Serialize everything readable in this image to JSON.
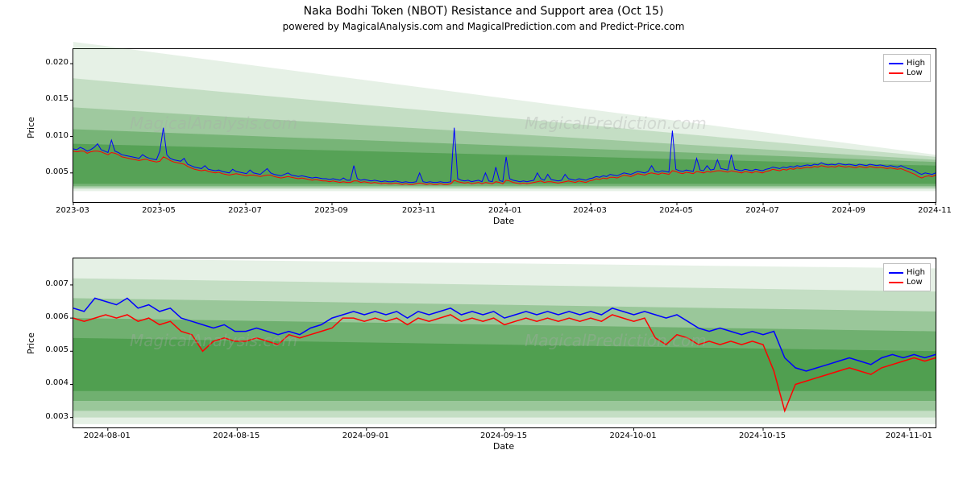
{
  "title": "Naka Bodhi Token (NBOT) Resistance and Support area (Oct 15)",
  "title_fontsize": 14,
  "subtitle": "powered by MagicalAnalysis.com and MagicalPrediction.com and Predict-Price.com",
  "subtitle_fontsize": 12,
  "background_color": "#ffffff",
  "watermarks": [
    "MagicalAnalysis.com",
    "MagicalPrediction.com"
  ],
  "watermark_color": "#aaaaaa",
  "watermark_opacity": 0.35,
  "legend": {
    "items": [
      {
        "label": "High",
        "color": "#0000ff"
      },
      {
        "label": "Low",
        "color": "#ff0000"
      }
    ]
  },
  "chart1": {
    "type": "line",
    "ylabel": "Price",
    "xlabel": "Date",
    "label_fontsize": 11,
    "ylim": [
      0.001,
      0.022
    ],
    "yticks": [
      0.005,
      0.01,
      0.015,
      0.02
    ],
    "ytick_labels": [
      "0.005",
      "0.010",
      "0.015",
      "0.020"
    ],
    "x_start": 0,
    "x_end": 610,
    "xticks": [
      0,
      61,
      122,
      183,
      245,
      306,
      366,
      427,
      488,
      549,
      610
    ],
    "xtick_labels": [
      "2023-03",
      "2023-05",
      "2023-07",
      "2023-09",
      "2023-11",
      "2024-01",
      "2024-03",
      "2024-05",
      "2024-07",
      "2024-09",
      "2024-11"
    ],
    "bands": [
      {
        "y0_start": 0.0025,
        "y1_start": 0.023,
        "y0_end": 0.0025,
        "y1_end": 0.0075,
        "color": "#2e8b2e",
        "opacity": 0.12
      },
      {
        "y0_start": 0.0028,
        "y1_start": 0.018,
        "y0_end": 0.0028,
        "y1_end": 0.0072,
        "color": "#2e8b2e",
        "opacity": 0.18
      },
      {
        "y0_start": 0.003,
        "y1_start": 0.014,
        "y0_end": 0.003,
        "y1_end": 0.0068,
        "color": "#2e8b2e",
        "opacity": 0.25
      },
      {
        "y0_start": 0.0032,
        "y1_start": 0.011,
        "y0_end": 0.0032,
        "y1_end": 0.0065,
        "color": "#2e8b2e",
        "opacity": 0.35
      },
      {
        "y0_start": 0.0035,
        "y1_start": 0.009,
        "y0_end": 0.0035,
        "y1_end": 0.006,
        "color": "#2e8b2e",
        "opacity": 0.45
      }
    ],
    "line_width": 1.0,
    "high_color": "#0000ff",
    "low_color": "#ff0000",
    "high": [
      0.0083,
      0.0082,
      0.0085,
      0.0083,
      0.008,
      0.0082,
      0.0085,
      0.009,
      0.0082,
      0.008,
      0.0078,
      0.0095,
      0.008,
      0.0078,
      0.0075,
      0.0074,
      0.0073,
      0.0072,
      0.0071,
      0.007,
      0.0075,
      0.0072,
      0.007,
      0.0069,
      0.0068,
      0.008,
      0.0112,
      0.0075,
      0.007,
      0.0068,
      0.0067,
      0.0066,
      0.007,
      0.0062,
      0.006,
      0.0058,
      0.0057,
      0.0056,
      0.006,
      0.0055,
      0.0054,
      0.0053,
      0.0054,
      0.0052,
      0.0051,
      0.005,
      0.0055,
      0.0052,
      0.0051,
      0.005,
      0.0049,
      0.0054,
      0.005,
      0.0049,
      0.0048,
      0.0052,
      0.0056,
      0.005,
      0.0048,
      0.0047,
      0.0046,
      0.0048,
      0.005,
      0.0047,
      0.0046,
      0.0045,
      0.0046,
      0.0045,
      0.0044,
      0.0043,
      0.0044,
      0.0043,
      0.0042,
      0.0042,
      0.0041,
      0.0042,
      0.0041,
      0.004,
      0.0043,
      0.004,
      0.004,
      0.006,
      0.0042,
      0.004,
      0.0041,
      0.004,
      0.0039,
      0.004,
      0.0039,
      0.0038,
      0.0039,
      0.0038,
      0.0038,
      0.0039,
      0.0038,
      0.0037,
      0.0038,
      0.0037,
      0.0037,
      0.0038,
      0.005,
      0.0038,
      0.0037,
      0.0038,
      0.0037,
      0.0037,
      0.0038,
      0.0037,
      0.0037,
      0.0038,
      0.0112,
      0.0042,
      0.004,
      0.0039,
      0.004,
      0.0038,
      0.0039,
      0.004,
      0.0038,
      0.005,
      0.0039,
      0.0038,
      0.0058,
      0.004,
      0.0038,
      0.0072,
      0.0042,
      0.004,
      0.0039,
      0.0038,
      0.0039,
      0.0038,
      0.0039,
      0.004,
      0.005,
      0.0042,
      0.004,
      0.0048,
      0.0041,
      0.004,
      0.0039,
      0.004,
      0.0048,
      0.0042,
      0.0041,
      0.004,
      0.0042,
      0.0041,
      0.004,
      0.0042,
      0.0043,
      0.0045,
      0.0044,
      0.0046,
      0.0045,
      0.0048,
      0.0047,
      0.0046,
      0.0048,
      0.005,
      0.0049,
      0.0048,
      0.005,
      0.0052,
      0.0051,
      0.005,
      0.0052,
      0.006,
      0.0052,
      0.0051,
      0.0053,
      0.0052,
      0.0051,
      0.0108,
      0.0055,
      0.0053,
      0.0052,
      0.0054,
      0.0053,
      0.0052,
      0.007,
      0.0054,
      0.0053,
      0.006,
      0.0054,
      0.0055,
      0.0068,
      0.0056,
      0.0055,
      0.0054,
      0.0075,
      0.0055,
      0.0054,
      0.0053,
      0.0055,
      0.0054,
      0.0053,
      0.0055,
      0.0054,
      0.0053,
      0.0055,
      0.0056,
      0.0058,
      0.0057,
      0.0056,
      0.0058,
      0.0057,
      0.0059,
      0.0058,
      0.006,
      0.0059,
      0.006,
      0.0061,
      0.006,
      0.0062,
      0.0061,
      0.0064,
      0.0062,
      0.0061,
      0.0062,
      0.0061,
      0.0063,
      0.0062,
      0.0061,
      0.0062,
      0.0061,
      0.006,
      0.0062,
      0.0061,
      0.006,
      0.0062,
      0.0061,
      0.006,
      0.0061,
      0.006,
      0.0059,
      0.006,
      0.0059,
      0.0058,
      0.006,
      0.0058,
      0.0056,
      0.0055,
      0.0053,
      0.005,
      0.0048,
      0.005,
      0.0049,
      0.0048,
      0.005
    ],
    "low": [
      0.008,
      0.0079,
      0.008,
      0.008,
      0.0077,
      0.0079,
      0.008,
      0.008,
      0.0079,
      0.0077,
      0.0075,
      0.0078,
      0.0077,
      0.0075,
      0.0072,
      0.0071,
      0.007,
      0.0069,
      0.0068,
      0.0067,
      0.0068,
      0.0069,
      0.0067,
      0.0066,
      0.0065,
      0.0066,
      0.0072,
      0.007,
      0.0067,
      0.0065,
      0.0064,
      0.0063,
      0.0062,
      0.0059,
      0.0057,
      0.0055,
      0.0054,
      0.0053,
      0.0054,
      0.0052,
      0.0051,
      0.005,
      0.0051,
      0.0049,
      0.0048,
      0.0047,
      0.0048,
      0.0049,
      0.0048,
      0.0047,
      0.0046,
      0.0047,
      0.0047,
      0.0046,
      0.0045,
      0.0046,
      0.0047,
      0.0047,
      0.0045,
      0.0044,
      0.0043,
      0.0044,
      0.0045,
      0.0044,
      0.0043,
      0.0042,
      0.0043,
      0.0042,
      0.0041,
      0.004,
      0.0041,
      0.004,
      0.0039,
      0.0039,
      0.0038,
      0.0039,
      0.0038,
      0.0037,
      0.0038,
      0.0037,
      0.0037,
      0.0039,
      0.0039,
      0.0037,
      0.0038,
      0.0037,
      0.0036,
      0.0037,
      0.0036,
      0.0035,
      0.0036,
      0.0035,
      0.0035,
      0.0036,
      0.0035,
      0.0034,
      0.0035,
      0.0034,
      0.0034,
      0.0035,
      0.0036,
      0.0035,
      0.0034,
      0.0035,
      0.0034,
      0.0034,
      0.0035,
      0.0034,
      0.0034,
      0.0035,
      0.004,
      0.0038,
      0.0037,
      0.0036,
      0.0037,
      0.0035,
      0.0036,
      0.0037,
      0.0035,
      0.0037,
      0.0036,
      0.0035,
      0.0038,
      0.0037,
      0.0035,
      0.004,
      0.0039,
      0.0037,
      0.0036,
      0.0035,
      0.0036,
      0.0035,
      0.0036,
      0.0037,
      0.0038,
      0.0039,
      0.0037,
      0.0038,
      0.0038,
      0.0037,
      0.0036,
      0.0037,
      0.0038,
      0.0039,
      0.0038,
      0.0037,
      0.0039,
      0.0038,
      0.0037,
      0.0039,
      0.004,
      0.0042,
      0.0041,
      0.0043,
      0.0042,
      0.0044,
      0.0044,
      0.0043,
      0.0045,
      0.0047,
      0.0046,
      0.0045,
      0.0047,
      0.0049,
      0.0048,
      0.0047,
      0.0049,
      0.005,
      0.0049,
      0.0048,
      0.005,
      0.0049,
      0.0048,
      0.0053,
      0.0052,
      0.005,
      0.0049,
      0.0051,
      0.005,
      0.0049,
      0.0052,
      0.0051,
      0.005,
      0.0052,
      0.0051,
      0.0052,
      0.0053,
      0.0053,
      0.0052,
      0.0051,
      0.0053,
      0.0052,
      0.0051,
      0.005,
      0.0052,
      0.0051,
      0.005,
      0.0052,
      0.0051,
      0.005,
      0.0052,
      0.0053,
      0.0055,
      0.0054,
      0.0053,
      0.0055,
      0.0054,
      0.0056,
      0.0055,
      0.0057,
      0.0056,
      0.0057,
      0.0058,
      0.0057,
      0.0059,
      0.0058,
      0.006,
      0.0059,
      0.0058,
      0.0059,
      0.0058,
      0.006,
      0.0059,
      0.0058,
      0.0059,
      0.0058,
      0.0057,
      0.0059,
      0.0058,
      0.0057,
      0.0059,
      0.0058,
      0.0057,
      0.0058,
      0.0057,
      0.0056,
      0.0057,
      0.0056,
      0.0055,
      0.0056,
      0.0054,
      0.0052,
      0.005,
      0.0048,
      0.0045,
      0.0043,
      0.0045,
      0.0046,
      0.0045,
      0.0047
    ]
  },
  "chart2": {
    "type": "line",
    "ylabel": "Price",
    "xlabel": "Date",
    "label_fontsize": 11,
    "ylim": [
      0.0027,
      0.0078
    ],
    "yticks": [
      0.003,
      0.004,
      0.005,
      0.006,
      0.007
    ],
    "ytick_labels": [
      "0.003",
      "0.004",
      "0.005",
      "0.006",
      "0.007"
    ],
    "x_start": 0,
    "x_end": 100,
    "xticks": [
      4,
      19,
      34,
      50,
      65,
      80,
      97
    ],
    "xtick_labels": [
      "2024-08-01",
      "2024-08-15",
      "2024-09-01",
      "2024-09-15",
      "2024-10-01",
      "2024-10-15",
      "2024-11-01"
    ],
    "bands": [
      {
        "y0_start": 0.0028,
        "y1_start": 0.0078,
        "y0_end": 0.0028,
        "y1_end": 0.0075,
        "color": "#2e8b2e",
        "opacity": 0.12
      },
      {
        "y0_start": 0.003,
        "y1_start": 0.0072,
        "y0_end": 0.003,
        "y1_end": 0.0068,
        "color": "#2e8b2e",
        "opacity": 0.18
      },
      {
        "y0_start": 0.0032,
        "y1_start": 0.0066,
        "y0_end": 0.0032,
        "y1_end": 0.0062,
        "color": "#2e8b2e",
        "opacity": 0.28
      },
      {
        "y0_start": 0.0035,
        "y1_start": 0.006,
        "y0_end": 0.0035,
        "y1_end": 0.0056,
        "color": "#2e8b2e",
        "opacity": 0.38
      },
      {
        "y0_start": 0.0038,
        "y1_start": 0.0054,
        "y0_end": 0.0038,
        "y1_end": 0.005,
        "color": "#2e8b2e",
        "opacity": 0.48
      }
    ],
    "line_width": 1.5,
    "high_color": "#0000ff",
    "low_color": "#ff0000",
    "high": [
      0.0063,
      0.0062,
      0.0066,
      0.0065,
      0.0064,
      0.0066,
      0.0063,
      0.0064,
      0.0062,
      0.0063,
      0.006,
      0.0059,
      0.0058,
      0.0057,
      0.0058,
      0.0056,
      0.0056,
      0.0057,
      0.0056,
      0.0055,
      0.0056,
      0.0055,
      0.0057,
      0.0058,
      0.006,
      0.0061,
      0.0062,
      0.0061,
      0.0062,
      0.0061,
      0.0062,
      0.006,
      0.0062,
      0.0061,
      0.0062,
      0.0063,
      0.0061,
      0.0062,
      0.0061,
      0.0062,
      0.006,
      0.0061,
      0.0062,
      0.0061,
      0.0062,
      0.0061,
      0.0062,
      0.0061,
      0.0062,
      0.0061,
      0.0063,
      0.0062,
      0.0061,
      0.0062,
      0.0061,
      0.006,
      0.0061,
      0.0059,
      0.0057,
      0.0056,
      0.0057,
      0.0056,
      0.0055,
      0.0056,
      0.0055,
      0.0056,
      0.0048,
      0.0045,
      0.0044,
      0.0045,
      0.0046,
      0.0047,
      0.0048,
      0.0047,
      0.0046,
      0.0048,
      0.0049,
      0.0048,
      0.0049,
      0.0048,
      0.0049
    ],
    "low": [
      0.006,
      0.0059,
      0.006,
      0.0061,
      0.006,
      0.0061,
      0.0059,
      0.006,
      0.0058,
      0.0059,
      0.0056,
      0.0055,
      0.005,
      0.0053,
      0.0054,
      0.0053,
      0.0053,
      0.0054,
      0.0053,
      0.0052,
      0.0055,
      0.0054,
      0.0055,
      0.0056,
      0.0057,
      0.006,
      0.006,
      0.0059,
      0.006,
      0.0059,
      0.006,
      0.0058,
      0.006,
      0.0059,
      0.006,
      0.0061,
      0.0059,
      0.006,
      0.0059,
      0.006,
      0.0058,
      0.0059,
      0.006,
      0.0059,
      0.006,
      0.0059,
      0.006,
      0.0059,
      0.006,
      0.0059,
      0.0061,
      0.006,
      0.0059,
      0.006,
      0.0054,
      0.0052,
      0.0055,
      0.0054,
      0.0052,
      0.0053,
      0.0052,
      0.0053,
      0.0052,
      0.0053,
      0.0052,
      0.0044,
      0.0032,
      0.004,
      0.0041,
      0.0042,
      0.0043,
      0.0044,
      0.0045,
      0.0044,
      0.0043,
      0.0045,
      0.0046,
      0.0047,
      0.0048,
      0.0047,
      0.0048
    ]
  }
}
